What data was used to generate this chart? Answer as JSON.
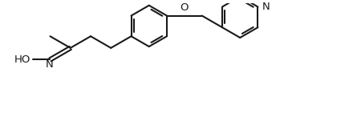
{
  "bg_color": "#ffffff",
  "line_color": "#1a1a1a",
  "line_width": 1.5,
  "font_size": 9.5,
  "label_color": "#1a1a1a",
  "fig_width": 4.45,
  "fig_height": 1.46,
  "dpi": 100,
  "xlim": [
    0,
    10
  ],
  "ylim": [
    0,
    3.5
  ]
}
